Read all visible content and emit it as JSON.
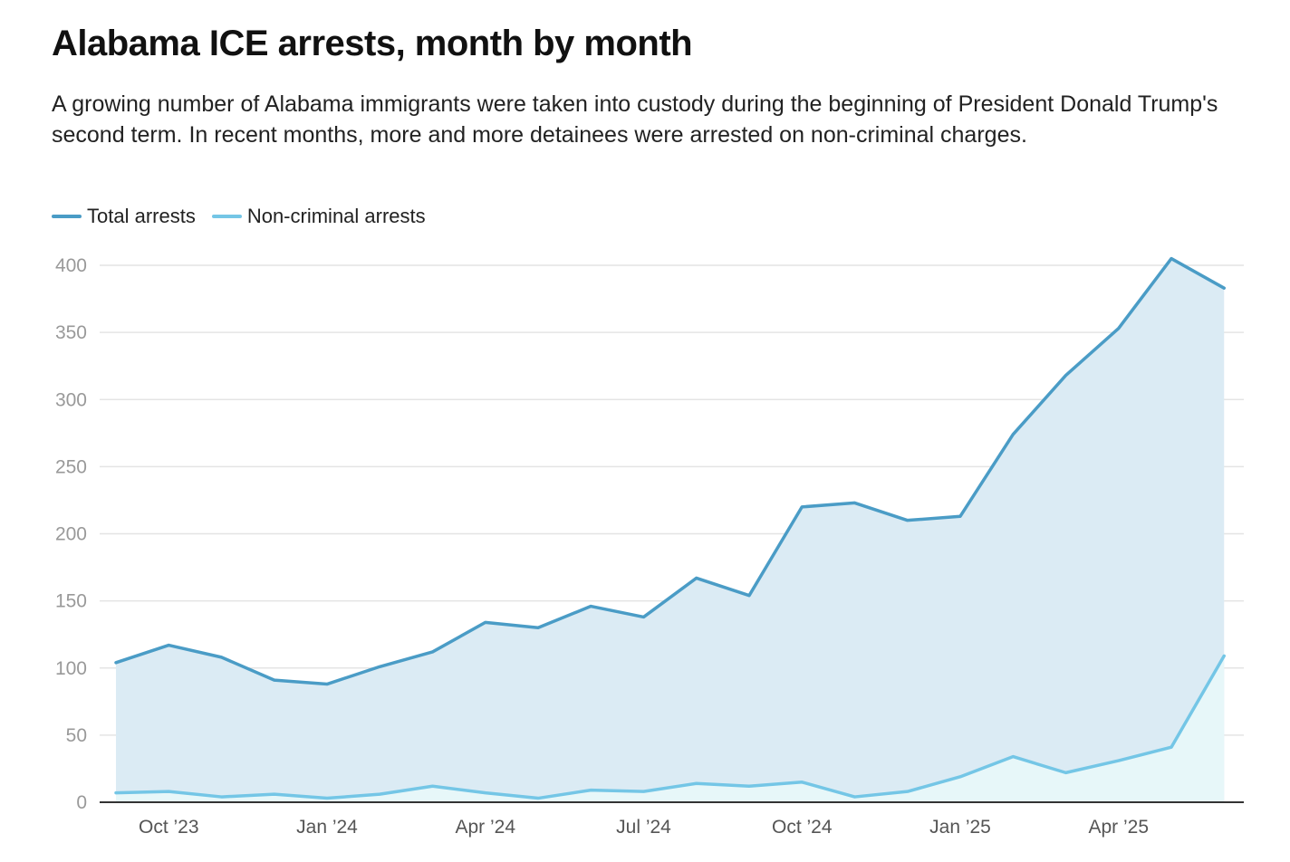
{
  "title": "Alabama ICE arrests, month by month",
  "subtitle": "A growing number of Alabama immigrants were taken into custody during the beginning of President Donald Trump's second term. In recent months, more and more detainees were arrested on non-criminal charges.",
  "colors": {
    "total": "#4a9cc6",
    "noncriminal": "#74c6e6",
    "total_fill": "#dbebf4",
    "noncriminal_fill": "#e7f7f9"
  },
  "chart_data": {
    "type": "area",
    "x": [
      "Sep '23",
      "Oct '23",
      "Nov '23",
      "Dec '23",
      "Jan '24",
      "Feb '24",
      "Mar '24",
      "Apr '24",
      "May '24",
      "Jun '24",
      "Jul '24",
      "Aug '24",
      "Sep '24",
      "Oct '24",
      "Nov '24",
      "Dec '24",
      "Jan '25",
      "Feb '25",
      "Mar '25",
      "Apr '25",
      "May '25",
      "Jun '25"
    ],
    "x_tick_labels": [
      "Oct ’23",
      "Jan ’24",
      "Apr ’24",
      "Jul ’24",
      "Oct ’24",
      "Jan ’25",
      "Apr ’25"
    ],
    "x_tick_months": [
      "Oct '23",
      "Jan '24",
      "Apr '24",
      "Jul '24",
      "Oct '24",
      "Jan '25",
      "Apr '25"
    ],
    "y_ticks": [
      0,
      50,
      100,
      150,
      200,
      250,
      300,
      350,
      400
    ],
    "ylim": [
      0,
      400
    ],
    "grid": true,
    "legend_position": "top-left",
    "series": [
      {
        "name": "Total arrests",
        "values": [
          104,
          117,
          108,
          91,
          88,
          101,
          112,
          134,
          130,
          146,
          138,
          167,
          154,
          220,
          223,
          210,
          213,
          274,
          318,
          353,
          405,
          383
        ]
      },
      {
        "name": "Non-criminal arrests",
        "values": [
          7,
          8,
          4,
          6,
          3,
          6,
          12,
          7,
          3,
          9,
          8,
          14,
          12,
          15,
          4,
          8,
          19,
          34,
          22,
          31,
          41,
          109
        ]
      }
    ]
  }
}
